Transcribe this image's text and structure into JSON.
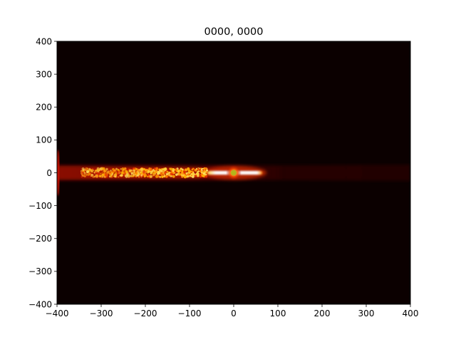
{
  "chart_data": {
    "type": "heatmap",
    "title": "0000, 0000",
    "xlabel": "",
    "ylabel": "",
    "xlim": [
      -400,
      400
    ],
    "ylim": [
      -400,
      400
    ],
    "xticks": [
      -400,
      -300,
      -200,
      -100,
      0,
      100,
      200,
      300,
      400
    ],
    "yticks": [
      -400,
      -300,
      -200,
      -100,
      0,
      100,
      200,
      300,
      400
    ],
    "xtick_labels": [
      "−400",
      "−300",
      "−200",
      "−100",
      "0",
      "100",
      "200",
      "300",
      "400"
    ],
    "ytick_labels": [
      "−400",
      "−300",
      "−200",
      "−100",
      "0",
      "100",
      "200",
      "300",
      "400"
    ],
    "grid": false,
    "colormap": "hot",
    "background_color": "#0b0000",
    "features": [
      {
        "name": "faint-cone",
        "x": [
          -400,
          400
        ],
        "y": [
          -25,
          25
        ],
        "color": "#2a0000"
      },
      {
        "name": "broad-glow-band",
        "x": [
          -400,
          120
        ],
        "y": [
          -22,
          22
        ],
        "color": "#7a0a00"
      },
      {
        "name": "left-edge-flare",
        "x": [
          -400,
          -398
        ],
        "y": [
          -70,
          70
        ],
        "color": "#c81000"
      },
      {
        "name": "speckled-core",
        "x": [
          -345,
          -60
        ],
        "y": [
          -15,
          15
        ],
        "color": "#e33000"
      },
      {
        "name": "bright-core",
        "x": [
          -60,
          65
        ],
        "y": [
          -10,
          10
        ],
        "color": "#fffde6"
      }
    ],
    "marker": {
      "x": 0,
      "y": 0,
      "color": "#b5b51a"
    }
  }
}
